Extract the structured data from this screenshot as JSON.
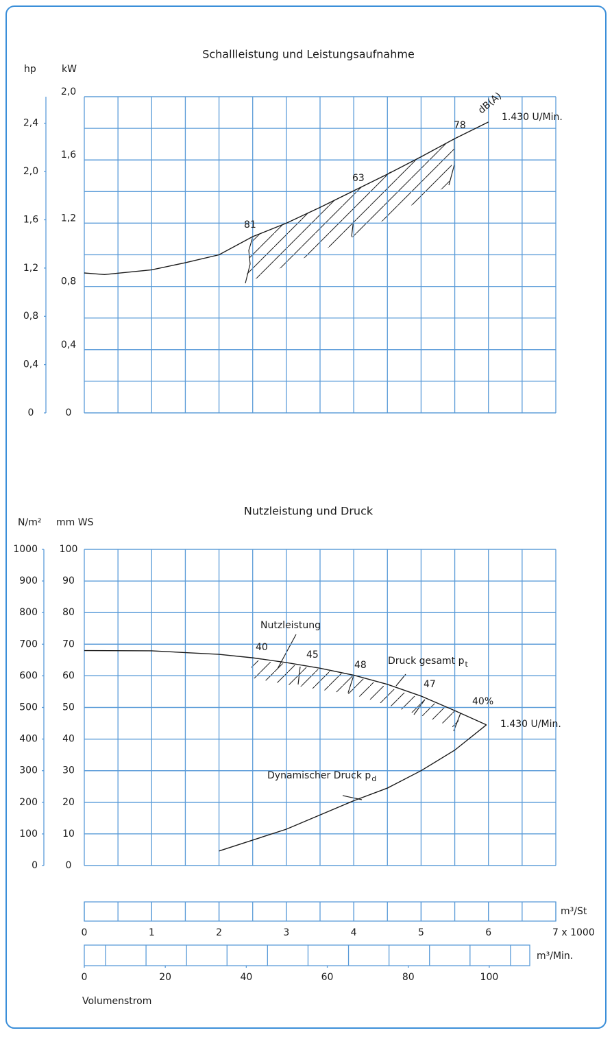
{
  "chart_data": [
    {
      "type": "line",
      "title": "Schallleistung und Leistungsaufnahme",
      "y_label": "kW",
      "y2_label": "hp",
      "xlim": [
        0,
        7
      ],
      "ylim": [
        0,
        2.0
      ],
      "yticks": [
        0,
        {
          "value": 0.4,
          "label": "0,4"
        },
        {
          "value": 0.8,
          "label": "0,8"
        },
        {
          "value": 1.2,
          "label": "1,2"
        },
        {
          "value": 1.6,
          "label": "1,6"
        },
        {
          "value": 2,
          "label": "2,0"
        }
      ],
      "y2lim": [
        0,
        2.62
      ],
      "y2ticks": [
        0,
        {
          "value": 0.4,
          "label": "0,4"
        },
        {
          "value": 0.8,
          "label": "0,8"
        },
        {
          "value": 1.2,
          "label": "1,2"
        },
        {
          "value": 1.6,
          "label": "1,6"
        },
        {
          "value": 2,
          "label": "2,0"
        },
        {
          "value": 2.4,
          "label": "2,4"
        }
      ],
      "series": [
        {
          "name": "1.430 U/Min.",
          "color": "#1a1a1a",
          "x": [
            0,
            0.3,
            1,
            1.5,
            2,
            2.5,
            3,
            3.5,
            4,
            4.5,
            5,
            5.5,
            6
          ],
          "values": [
            0.885,
            0.875,
            0.905,
            0.95,
            1.0,
            1.115,
            1.2,
            1.3,
            1.405,
            1.51,
            1.62,
            1.735,
            1.84
          ]
        }
      ],
      "annotations": [
        "81",
        "63",
        "78",
        "dB(A)"
      ],
      "grid": true
    },
    {
      "type": "line",
      "title": "Nutzleistung und Druck",
      "y_label": "mm WS",
      "y2_label": "N/m²",
      "xlim": [
        0,
        7
      ],
      "ylim": [
        0,
        100
      ],
      "yticks": [
        0,
        10,
        20,
        30,
        40,
        50,
        60,
        70,
        80,
        90,
        100
      ],
      "y2lim": [
        0,
        1000
      ],
      "y2ticks": [
        0,
        100,
        200,
        300,
        400,
        500,
        600,
        700,
        800,
        900,
        1000
      ],
      "series": [
        {
          "name": "Druck gesamt p",
          "name_subscript": "t",
          "color": "#1a1a1a",
          "x": [
            0,
            1,
            2,
            2.5,
            3,
            3.5,
            4,
            4.5,
            5,
            5.5,
            5.97
          ],
          "values": [
            68,
            67.9,
            66.8,
            65.7,
            64.2,
            62.4,
            60.2,
            57.3,
            53.6,
            49,
            44.5
          ]
        },
        {
          "name": "Dynamischer Druck p",
          "name_subscript": "d",
          "color": "#1a1a1a",
          "x": [
            2,
            3,
            4,
            4.5,
            5,
            5.5,
            5.97
          ],
          "values": [
            4.6,
            11.5,
            20.5,
            24.5,
            30,
            36.5,
            44.5
          ]
        }
      ],
      "annotations": [
        "Nutzleistung",
        "40",
        "45",
        "48",
        "47",
        "40%",
        "1.430 U/Min."
      ],
      "xticks": [
        0,
        1,
        2,
        3,
        4,
        5,
        6,
        {
          "value": 7,
          "label": "7 x 1000"
        }
      ],
      "x_unit": "m³/St",
      "x2lim": [
        0,
        110
      ],
      "x2ticks": [
        0,
        20,
        40,
        60,
        80,
        100
      ],
      "x2_unit": "m³/Min.",
      "x_label": "Volumenstrom",
      "grid": true
    }
  ]
}
